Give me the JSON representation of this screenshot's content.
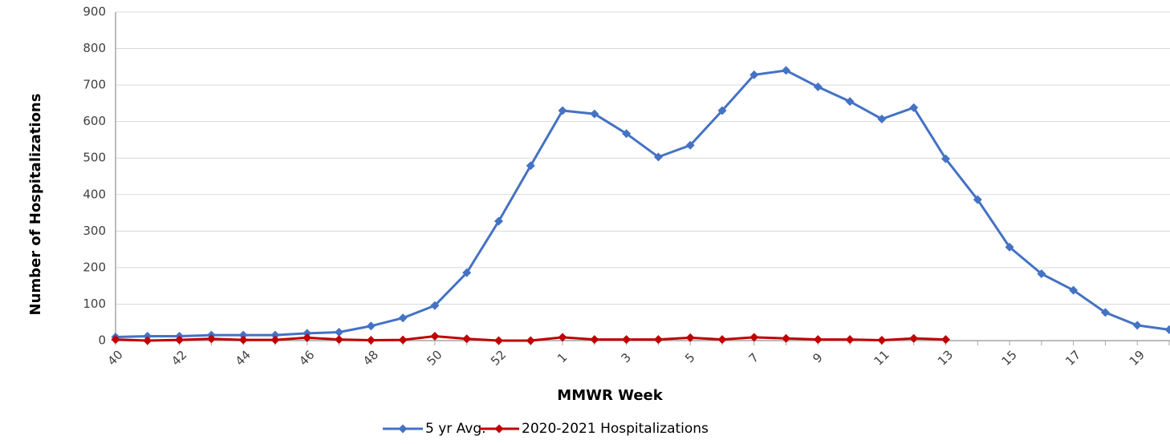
{
  "chart_data": {
    "type": "line",
    "x_label": "MMWR Week",
    "y_label": "Number of Hospitalizations",
    "categories": [
      "40",
      null,
      "42",
      null,
      "44",
      null,
      "46",
      null,
      "48",
      null,
      "50",
      null,
      "52",
      null,
      "1",
      null,
      "3",
      null,
      "5",
      null,
      "7",
      null,
      "9",
      null,
      "11",
      null,
      "13",
      null,
      "15",
      null,
      "17",
      null,
      "19",
      null
    ],
    "series": [
      {
        "name": "5 yr Avg.",
        "color": "#4472c4",
        "values": [
          10,
          12,
          12,
          15,
          15,
          15,
          20,
          23,
          40,
          62,
          96,
          186,
          327,
          479,
          630,
          621,
          567,
          503,
          535,
          630,
          728,
          740,
          695,
          655,
          607,
          638,
          498,
          386,
          256,
          183,
          138,
          77,
          42,
          30
        ]
      },
      {
        "name": "2020-2021 Hospitalizations",
        "color": "#c00000",
        "values": [
          3,
          0,
          2,
          5,
          2,
          2,
          8,
          3,
          1,
          2,
          12,
          5,
          0,
          0,
          9,
          3,
          3,
          3,
          8,
          3,
          9,
          6,
          3,
          3,
          1,
          6,
          3,
          null,
          null,
          null,
          null,
          null,
          null,
          null
        ]
      }
    ],
    "ylim": [
      0,
      900
    ],
    "yticks": [
      0,
      100,
      200,
      300,
      400,
      500,
      600,
      700,
      800,
      900
    ],
    "grid": true,
    "legend": "bottom"
  }
}
